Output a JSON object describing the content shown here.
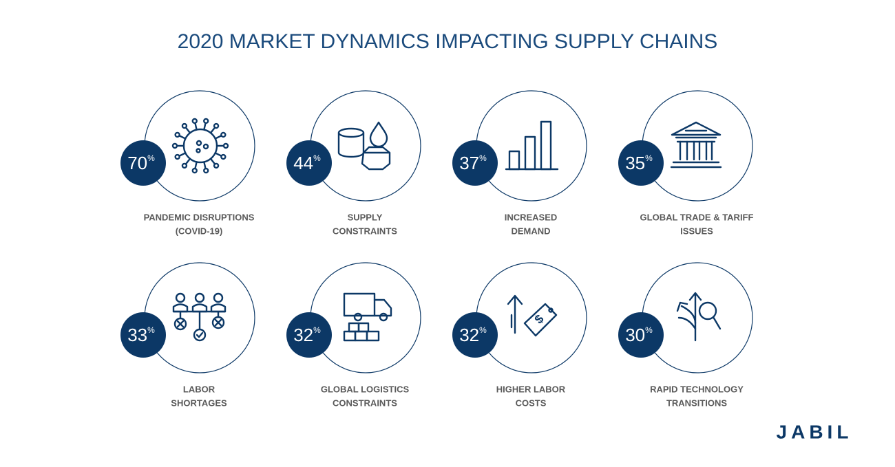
{
  "header": {
    "title": "2020 MARKET DYNAMICS IMPACTING SUPPLY CHAINS"
  },
  "items": [
    {
      "percent": 70,
      "unit": "%",
      "label": [
        "PANDEMIC DISRUPTIONS",
        "(COVID-19)"
      ]
    },
    {
      "percent": 44,
      "unit": "%",
      "label": [
        "SUPPLY",
        "CONSTRAINTS"
      ]
    },
    {
      "percent": 37,
      "unit": "%",
      "label": [
        "INCREASED",
        "DEMAND"
      ]
    },
    {
      "percent": 35,
      "unit": "%",
      "label": [
        "GLOBAL TRADE & TARIFF",
        "ISSUES"
      ]
    },
    {
      "percent": 33,
      "unit": "%",
      "label": [
        "LABOR",
        "SHORTAGES"
      ]
    },
    {
      "percent": 32,
      "unit": "%",
      "label": [
        "GLOBAL LOGISTICS",
        "CONSTRAINTS"
      ]
    },
    {
      "percent": 32,
      "unit": "%",
      "label": [
        "HIGHER LABOR",
        "COSTS"
      ]
    },
    {
      "percent": 30,
      "unit": "%",
      "label": [
        "RAPID TECHNOLOGY",
        "TRANSITIONS"
      ]
    }
  ],
  "footer": {
    "logo": "JABIL"
  }
}
